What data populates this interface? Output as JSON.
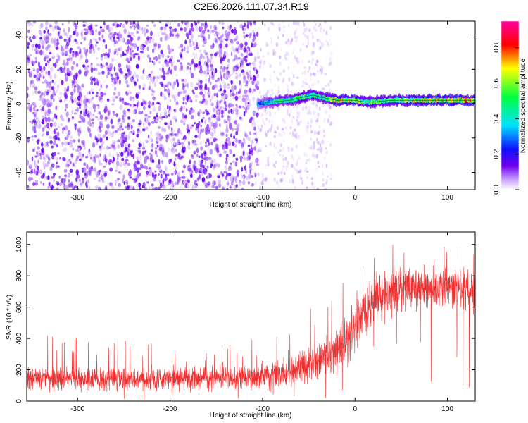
{
  "title": "C2E6.2026.111.07.34.R19",
  "chart_data": [
    {
      "type": "heatmap",
      "xlabel": "Height of straight line (km)",
      "ylabel": "Frequency (Hz)",
      "xlim": [
        -355,
        130
      ],
      "ylim": [
        -50,
        48
      ],
      "xticks": [
        -300,
        -200,
        -100,
        0,
        100
      ],
      "xtick_labels": [
        "-300",
        "-200",
        "-100",
        "0",
        "100"
      ],
      "yticks": [
        -40,
        -20,
        0,
        20,
        40
      ],
      "ytick_labels": [
        "-40",
        "-20",
        "0",
        "20",
        "40"
      ],
      "colorbar": {
        "label": "Normalized spectral amplitude",
        "range": [
          0,
          0.95
        ],
        "ticks": [
          0,
          0.2,
          0.4,
          0.6,
          0.8
        ],
        "tick_labels": [
          "0.0",
          "0.2",
          "0.4",
          "0.6",
          "0.8"
        ],
        "colormap": [
          "#ffffff",
          "#c8a0ff",
          "#7000ee",
          "#1010ff",
          "#00e0ff",
          "#00ff40",
          "#ffff00",
          "#ff0000",
          "#ff00a0"
        ]
      },
      "noise_region": {
        "x": [
          -355,
          -105
        ],
        "level": 0.12
      },
      "sparse_region": {
        "x": [
          -105,
          -25
        ],
        "level": 0.06
      },
      "signal_trace": {
        "x": [
          -105,
          -90,
          -70,
          -55,
          -45,
          -38,
          -30,
          -20,
          -10,
          0,
          10,
          20,
          40,
          60,
          80,
          100,
          130
        ],
        "y": [
          0,
          1,
          2,
          4,
          5,
          4,
          3,
          2,
          2,
          2,
          1,
          1,
          2,
          2,
          2,
          2,
          2
        ],
        "amplitude": [
          0.3,
          0.45,
          0.5,
          0.55,
          0.55,
          0.5,
          0.55,
          0.7,
          0.7,
          0.65,
          0.55,
          0.55,
          0.6,
          0.65,
          0.7,
          0.7,
          0.75
        ]
      }
    },
    {
      "type": "line",
      "color": "#f03030",
      "xlabel": "Height of straight line (km)",
      "ylabel": "SNR (10 * v/v)",
      "xlim": [
        -355,
        130
      ],
      "ylim": [
        0,
        1080
      ],
      "xticks": [
        -300,
        -200,
        -100,
        0,
        100
      ],
      "xtick_labels": [
        "-300",
        "-200",
        "-100",
        "0",
        "100"
      ],
      "yticks": [
        0,
        200,
        400,
        600,
        800,
        1000
      ],
      "ytick_labels": [
        "0",
        "200",
        "400",
        "600",
        "800",
        "1000"
      ],
      "envelope": {
        "x": [
          -355,
          -300,
          -200,
          -120,
          -80,
          -60,
          -40,
          -20,
          -5,
          5,
          20,
          35,
          60,
          100,
          130
        ],
        "mean": [
          140,
          140,
          140,
          150,
          175,
          200,
          250,
          330,
          430,
          540,
          640,
          700,
          720,
          720,
          720
        ],
        "spread": [
          60,
          60,
          60,
          65,
          75,
          85,
          100,
          120,
          150,
          160,
          140,
          120,
          115,
          110,
          110
        ],
        "peak": [
          430,
          420,
          380,
          390,
          420,
          460,
          680,
          720,
          800,
          900,
          940,
          1000,
          1060,
          1000,
          960
        ]
      }
    }
  ]
}
